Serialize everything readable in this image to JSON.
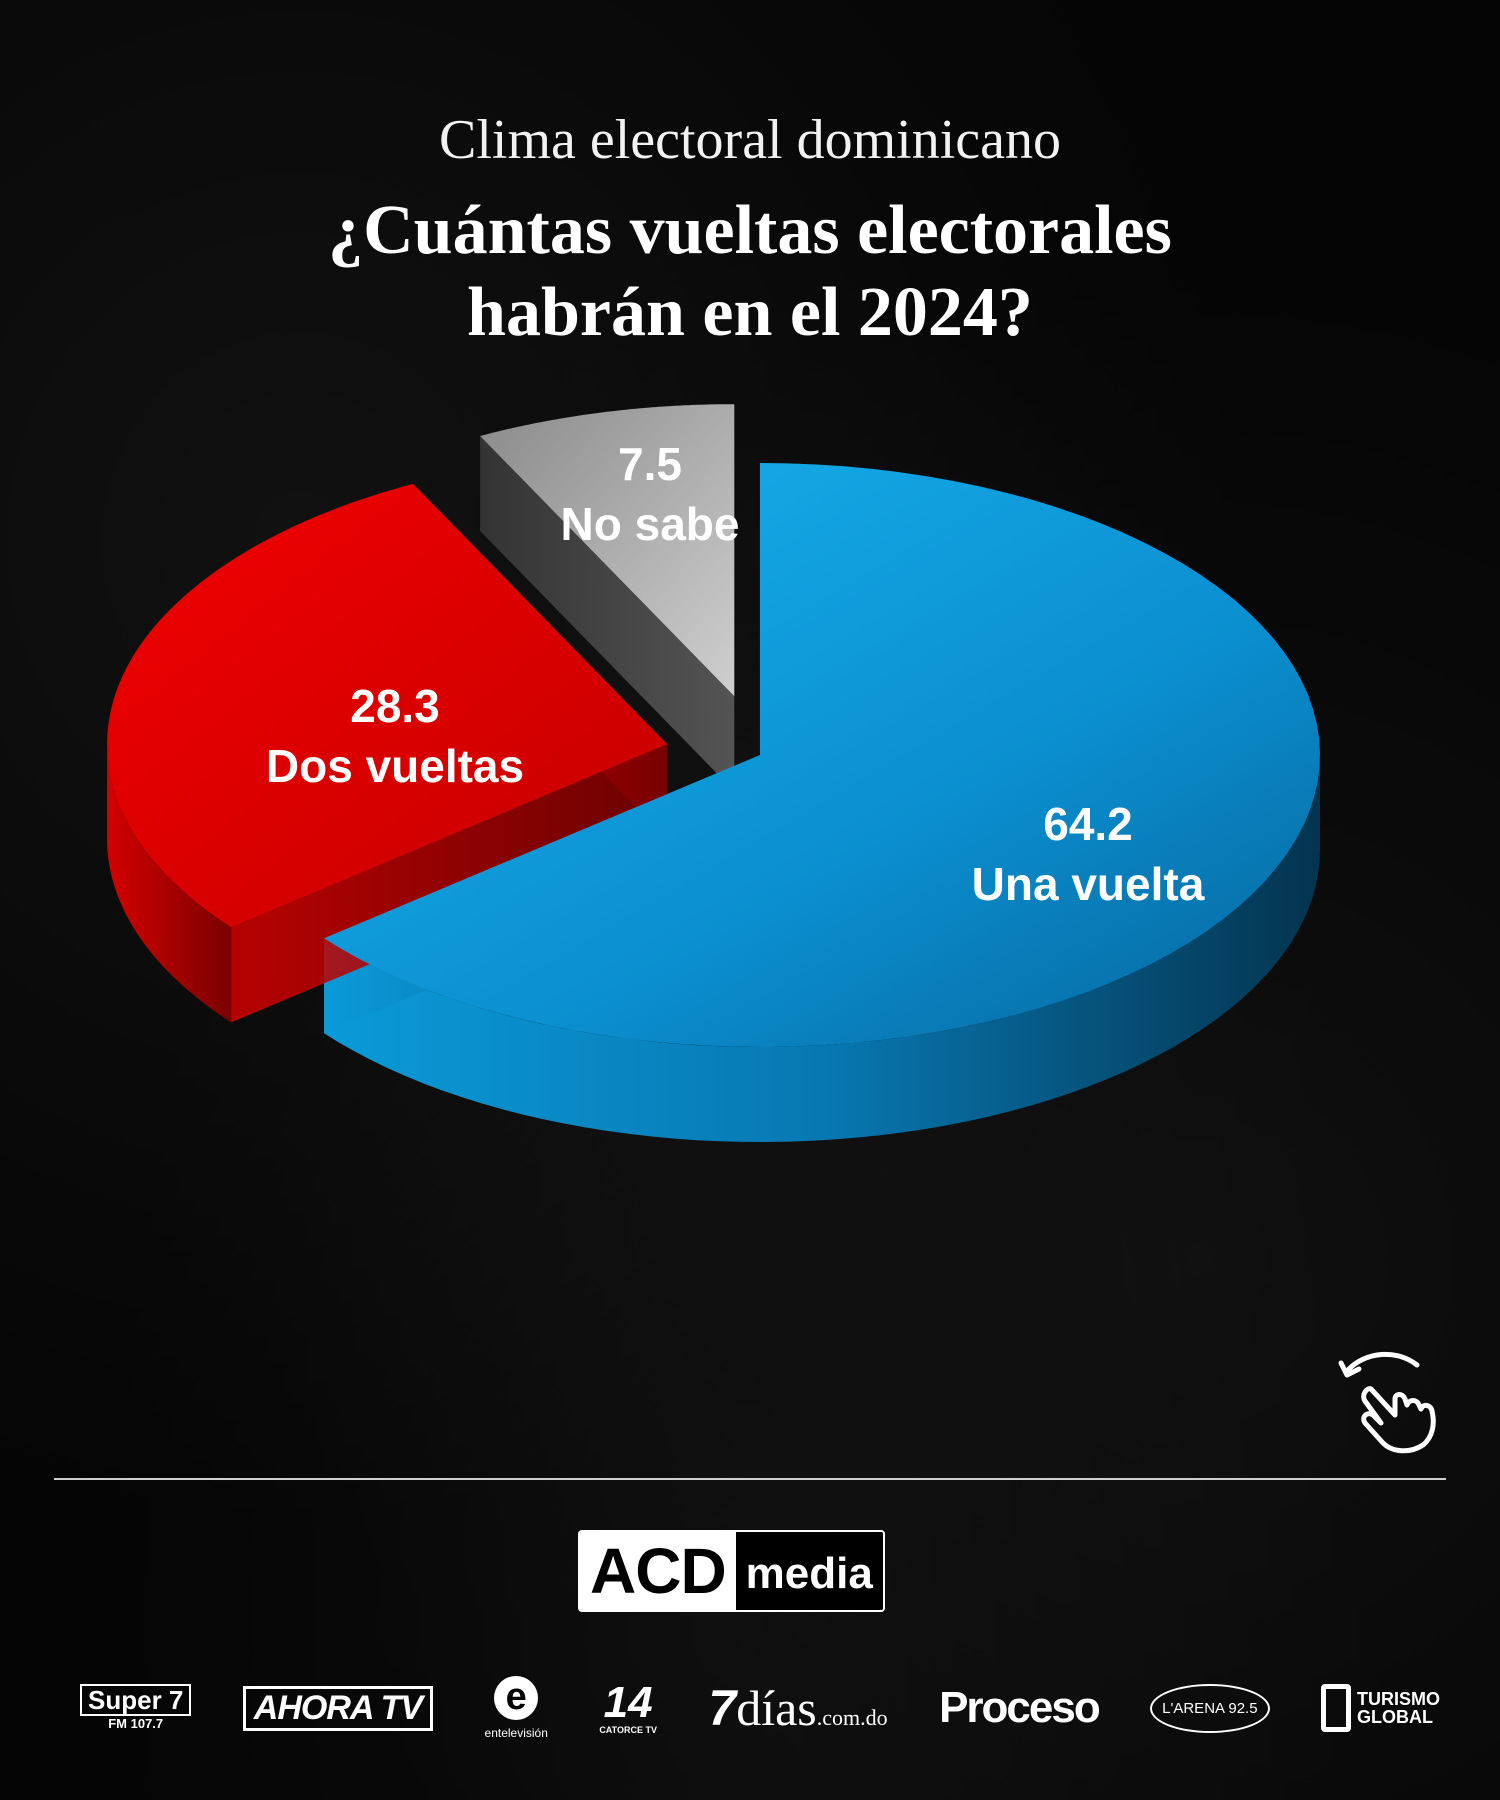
{
  "header": {
    "subtitle": "Clima electoral dominicano",
    "title_line1": "¿Cuántas vueltas electorales",
    "title_line2": "habrán en el 2024?"
  },
  "chart_data": {
    "type": "pie",
    "title": "¿Cuántas vueltas electorales habrán en el 2024?",
    "slices": [
      {
        "label": "Una vuelta",
        "value": 64.2,
        "value_text": "64.2",
        "color": "#0a8fcf"
      },
      {
        "label": "Dos vueltas",
        "value": 28.3,
        "value_text": "28.3",
        "color": "#e00000"
      },
      {
        "label": "No sabe",
        "value": 7.5,
        "value_text": "7.5",
        "color": "#9a9a9a"
      }
    ],
    "style": "3d exploded pie"
  },
  "footer": {
    "brand_main": "ACD",
    "brand_sub": "media",
    "partners": {
      "super7": "Super 7",
      "super7_sub": "FM 107.7",
      "ahora": "AHORA TV",
      "entv_mark": "e",
      "entv": "entelevisión",
      "catorce_mark": "14",
      "catorce": "CATORCE TV",
      "dias_mark": "7",
      "dias": "días",
      "dias_dom": ".com.do",
      "proceso": "Proceso",
      "arena": "L'ARENA 92.5",
      "turismo": "TURISMO",
      "global": "GLOBAL"
    }
  },
  "icons": {
    "swipe": "swipe-hand-icon"
  }
}
